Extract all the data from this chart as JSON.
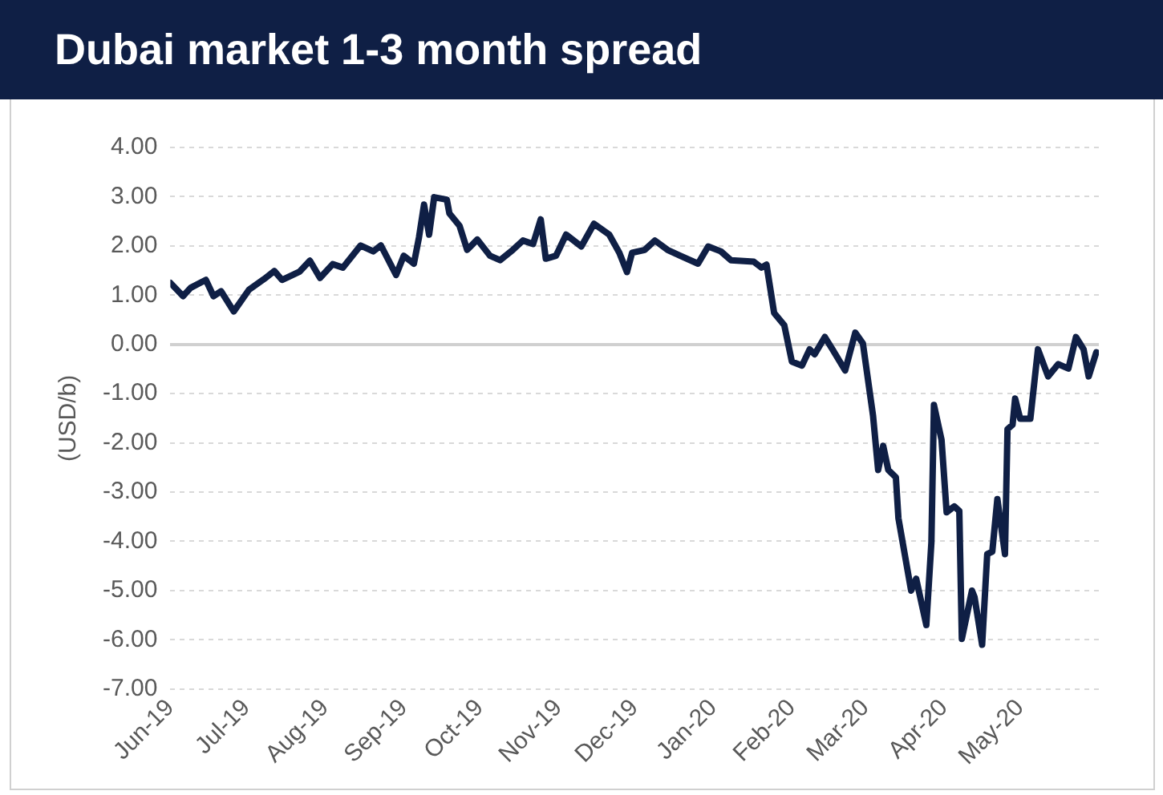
{
  "chart_data": {
    "type": "line",
    "title": "Dubai market 1-3 month spread",
    "ylabel": "(USD/b)",
    "x": [
      "2019-06-01",
      "2019-06-06",
      "2019-06-09",
      "2019-06-15",
      "2019-06-18",
      "2019-06-21",
      "2019-06-26",
      "2019-07-02",
      "2019-07-08",
      "2019-07-12",
      "2019-07-15",
      "2019-07-22",
      "2019-07-26",
      "2019-07-30",
      "2019-08-04",
      "2019-08-08",
      "2019-08-15",
      "2019-08-20",
      "2019-08-23",
      "2019-08-29",
      "2019-09-01",
      "2019-09-05",
      "2019-09-07",
      "2019-09-09",
      "2019-09-11",
      "2019-09-13",
      "2019-09-18",
      "2019-09-19",
      "2019-09-23",
      "2019-09-26",
      "2019-09-30",
      "2019-10-05",
      "2019-10-09",
      "2019-10-14",
      "2019-10-18",
      "2019-10-22",
      "2019-10-25",
      "2019-10-27",
      "2019-10-31",
      "2019-11-04",
      "2019-11-10",
      "2019-11-15",
      "2019-11-21",
      "2019-11-25",
      "2019-11-28",
      "2019-11-30",
      "2019-12-05",
      "2019-12-09",
      "2019-12-14",
      "2019-12-19",
      "2019-12-26",
      "2019-12-30",
      "2020-01-04",
      "2020-01-08",
      "2020-01-17",
      "2020-01-20",
      "2020-01-22",
      "2020-01-25",
      "2020-01-29",
      "2020-02-01",
      "2020-02-05",
      "2020-02-08",
      "2020-02-10",
      "2020-02-14",
      "2020-02-17",
      "2020-02-22",
      "2020-02-26",
      "2020-02-29",
      "2020-03-04",
      "2020-03-06",
      "2020-03-08",
      "2020-03-10",
      "2020-03-13",
      "2020-03-14",
      "2020-03-19",
      "2020-03-21",
      "2020-03-25",
      "2020-03-27",
      "2020-03-28",
      "2020-03-31",
      "2020-04-02",
      "2020-04-05",
      "2020-04-07",
      "2020-04-08",
      "2020-04-12",
      "2020-04-13",
      "2020-04-16",
      "2020-04-18",
      "2020-04-20",
      "2020-04-22",
      "2020-04-25",
      "2020-04-26",
      "2020-04-28",
      "2020-04-29",
      "2020-05-01",
      "2020-05-05",
      "2020-05-08",
      "2020-05-12",
      "2020-05-16",
      "2020-05-20",
      "2020-05-23",
      "2020-05-26",
      "2020-05-28",
      "2020-05-31"
    ],
    "series": [
      {
        "color": "#0f1f45",
        "values": [
          1.25,
          0.98,
          1.15,
          1.31,
          0.98,
          1.08,
          0.67,
          1.11,
          1.33,
          1.49,
          1.31,
          1.48,
          1.7,
          1.35,
          1.63,
          1.56,
          2.01,
          1.89,
          2.01,
          1.41,
          1.8,
          1.64,
          2.17,
          2.84,
          2.23,
          2.99,
          2.94,
          2.66,
          2.41,
          1.92,
          2.13,
          1.8,
          1.71,
          1.92,
          2.11,
          2.04,
          2.54,
          1.74,
          1.8,
          2.23,
          1.99,
          2.45,
          2.23,
          1.86,
          1.47,
          1.86,
          1.92,
          2.11,
          1.92,
          1.8,
          1.64,
          1.99,
          1.89,
          1.71,
          1.68,
          1.56,
          1.62,
          0.64,
          0.39,
          -0.35,
          -0.43,
          -0.1,
          -0.2,
          0.15,
          -0.1,
          -0.53,
          0.24,
          0.02,
          -1.45,
          -2.55,
          -2.06,
          -2.55,
          -2.7,
          -3.53,
          -5.0,
          -4.76,
          -5.7,
          -4.02,
          -1.23,
          -1.94,
          -3.41,
          -3.29,
          -3.38,
          -5.98,
          -5.0,
          -5.13,
          -6.1,
          -4.26,
          -4.21,
          -3.14,
          -4.26,
          -1.72,
          -1.63,
          -1.1,
          -1.51,
          -1.51,
          -0.1,
          -0.65,
          -0.4,
          -0.49,
          0.15,
          -0.1,
          -0.65,
          -0.16
        ]
      }
    ],
    "xlim": [
      "2019-06-01",
      "2020-06-01"
    ],
    "xticks": [
      {
        "value": "2019-06-01",
        "label": "Jun-19"
      },
      {
        "value": "2019-07-01",
        "label": "Jul-19"
      },
      {
        "value": "2019-08-01",
        "label": "Aug-19"
      },
      {
        "value": "2019-09-01",
        "label": "Sep-19"
      },
      {
        "value": "2019-10-01",
        "label": "Oct-19"
      },
      {
        "value": "2019-11-01",
        "label": "Nov-19"
      },
      {
        "value": "2019-12-01",
        "label": "Dec-19"
      },
      {
        "value": "2020-01-01",
        "label": "Jan-20"
      },
      {
        "value": "2020-02-01",
        "label": "Feb-20"
      },
      {
        "value": "2020-03-01",
        "label": "Mar-20"
      },
      {
        "value": "2020-04-01",
        "label": "Apr-20"
      },
      {
        "value": "2020-05-01",
        "label": "May-20"
      }
    ],
    "ylim": [
      -7,
      4
    ],
    "yticks": [
      {
        "value": 4,
        "label": "4.00"
      },
      {
        "value": 3,
        "label": "3.00"
      },
      {
        "value": 2,
        "label": "2.00"
      },
      {
        "value": 1,
        "label": "1.00"
      },
      {
        "value": 0,
        "label": "0.00"
      },
      {
        "value": -1,
        "label": "-1.00"
      },
      {
        "value": -2,
        "label": "-2.00"
      },
      {
        "value": -3,
        "label": "-3.00"
      },
      {
        "value": -4,
        "label": "-4.00"
      },
      {
        "value": -5,
        "label": "-5.00"
      },
      {
        "value": -6,
        "label": "-6.00"
      },
      {
        "value": -7,
        "label": "-7.00"
      }
    ],
    "grid": "y",
    "legend": false,
    "marker": "none",
    "line_style": "solid"
  }
}
